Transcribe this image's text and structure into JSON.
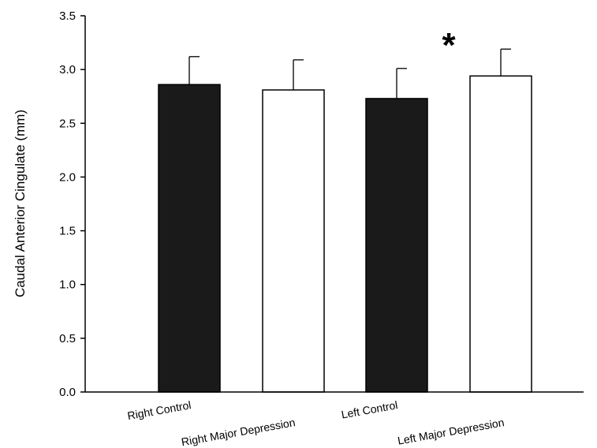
{
  "chart_data": {
    "type": "bar",
    "title": "",
    "xlabel": "",
    "ylabel": "Caudal Anterior Cingulate (mm)",
    "ylim": [
      0,
      3.5
    ],
    "yticks": [
      "0.0",
      "0.5",
      "1.0",
      "1.5",
      "2.0",
      "2.5",
      "3.0",
      "3.5"
    ],
    "categories": [
      "Right Control",
      "Right Major Depression",
      "Left Control",
      "Left Major Depression"
    ],
    "values": [
      2.86,
      2.81,
      2.73,
      2.94
    ],
    "errors": [
      0.26,
      0.28,
      0.28,
      0.25
    ],
    "bar_colors": [
      "#1a1a1a",
      "#ffffff",
      "#1a1a1a",
      "#ffffff"
    ],
    "grid": false,
    "annotations": [
      {
        "text": "*",
        "category": "Left Major Depression"
      }
    ]
  }
}
